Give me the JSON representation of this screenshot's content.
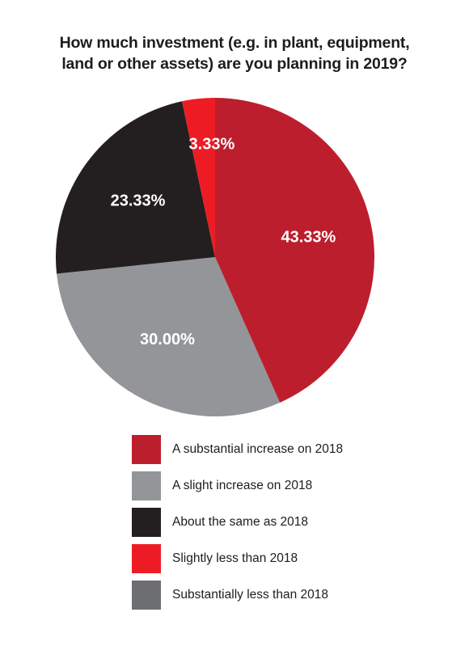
{
  "chart_data": {
    "type": "pie",
    "title": "How much investment (e.g. in plant, equipment, land or other assets) are you planning in 2019?",
    "title_lines": [
      "How much investment (e.g. in plant, equipment,",
      "land or other assets) are you planning in 2019?"
    ],
    "slices": [
      {
        "label": "A substantial increase on 2018",
        "value": 43.33,
        "data_label": "43.33%",
        "color": "#bd1e2d"
      },
      {
        "label": "A slight increase on 2018",
        "value": 30.0,
        "data_label": "30.00%",
        "color": "#939598"
      },
      {
        "label": "About the same as 2018",
        "value": 23.33,
        "data_label": "23.33%",
        "color": "#231f20"
      },
      {
        "label": "Slightly less than 2018",
        "value": 3.33,
        "data_label": "3.33%",
        "color": "#ed1c24"
      },
      {
        "label": "Substantially less than 2018",
        "value": 0,
        "data_label": "",
        "color": "#6d6e71"
      }
    ],
    "start_angle": "12 o'clock",
    "direction": "clockwise",
    "legend_position": "bottom"
  }
}
